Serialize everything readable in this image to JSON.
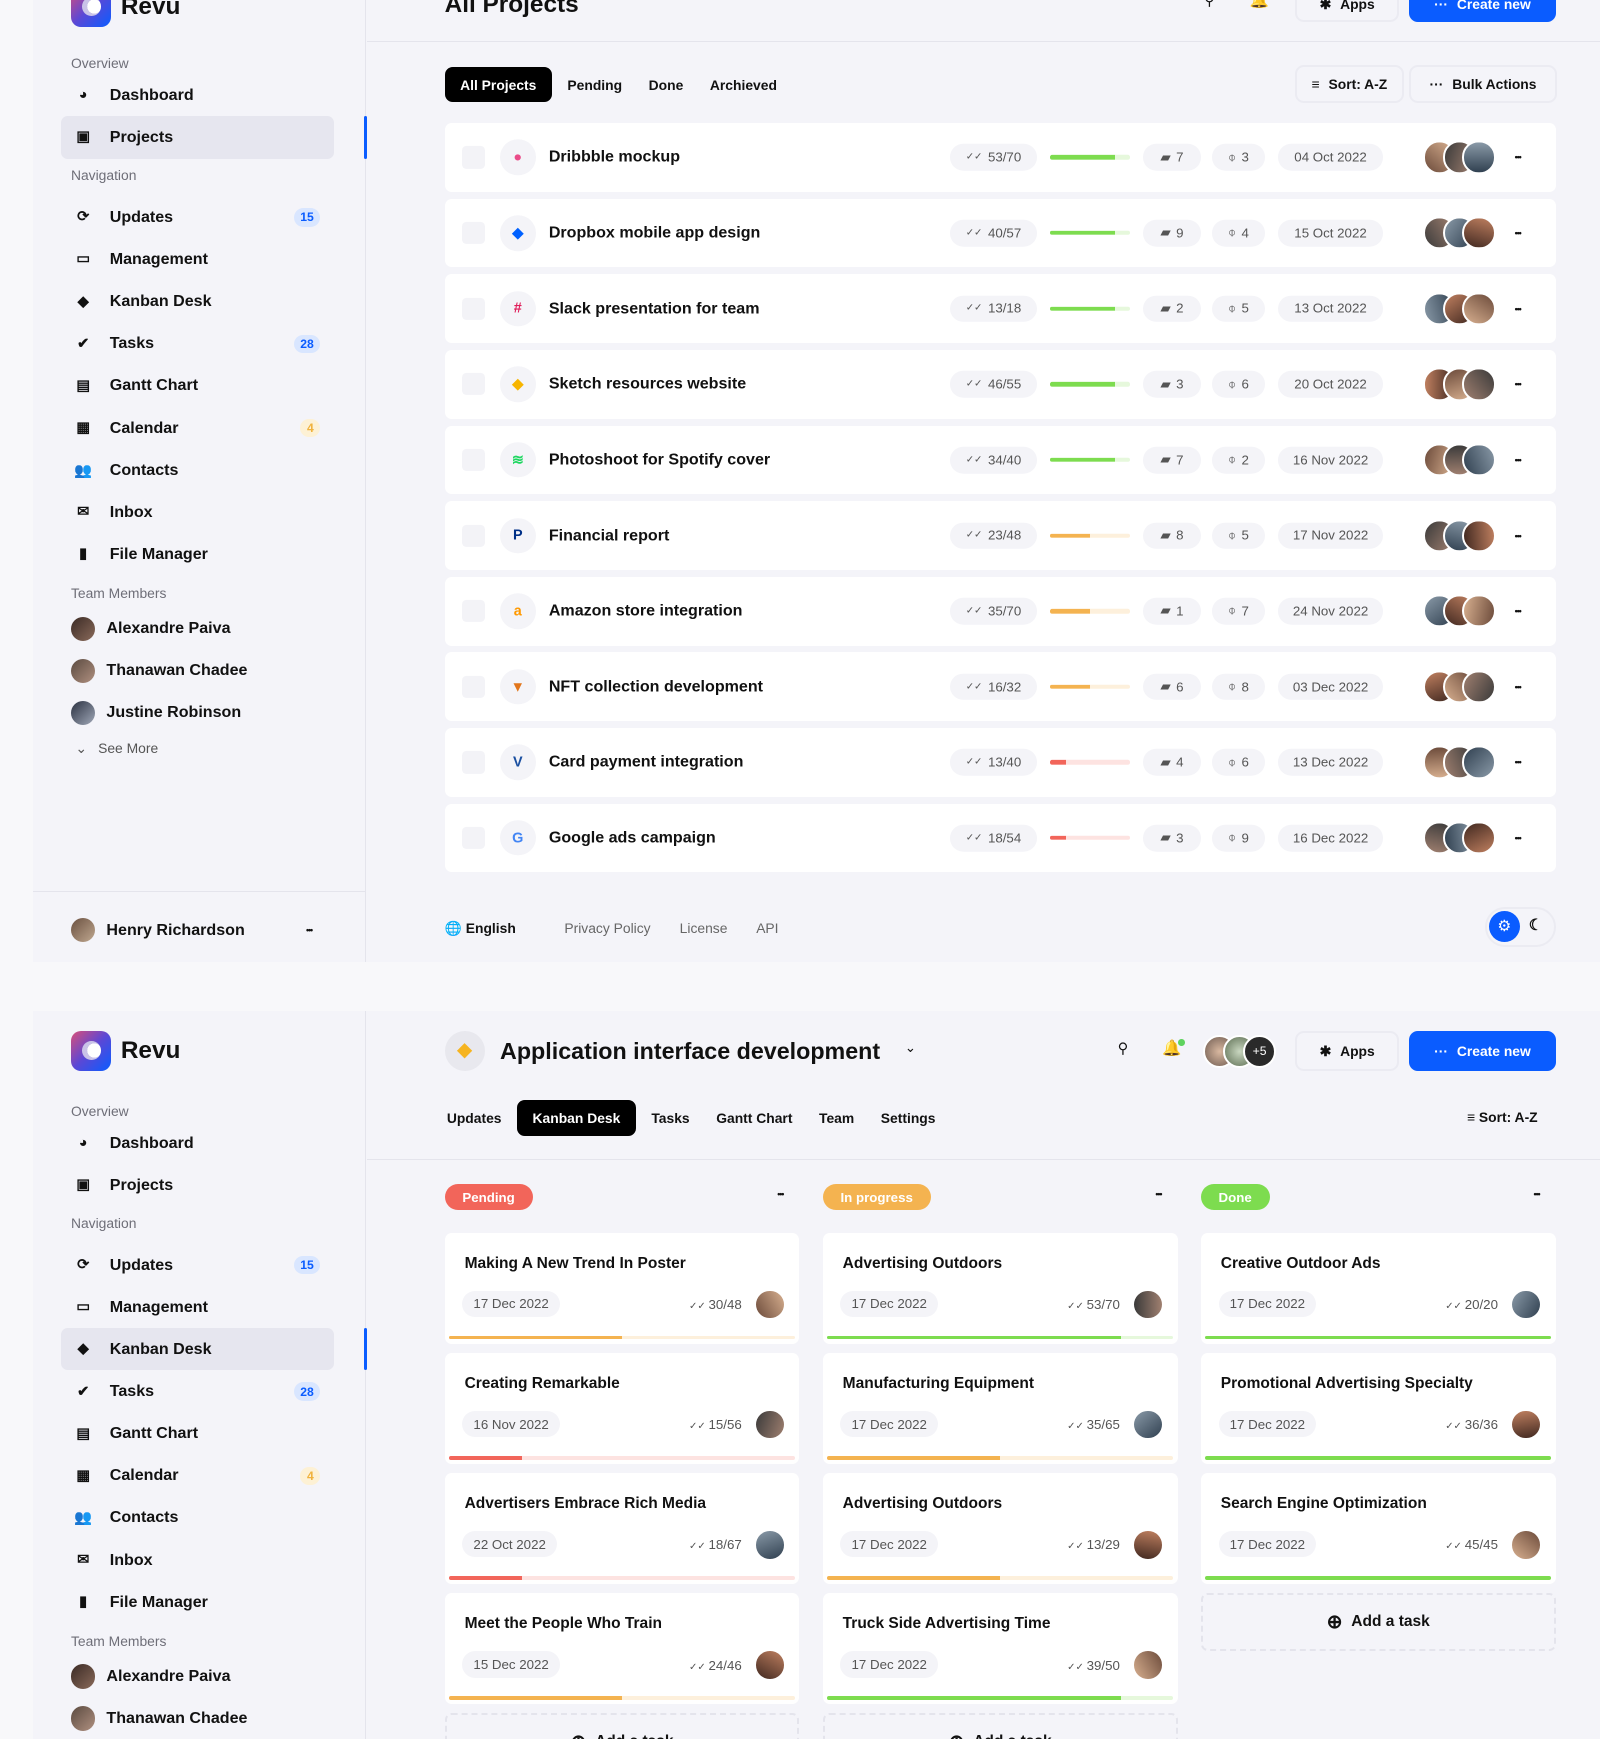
{
  "app": {
    "name": "Revu"
  },
  "sidebar": {
    "overview_label": "Overview",
    "navigation_label": "Navigation",
    "team_label": "Team Members",
    "overview": [
      {
        "label": "Dashboard",
        "icon": "pie-chart-icon"
      },
      {
        "label": "Projects",
        "icon": "projects-icon"
      }
    ],
    "navigation": [
      {
        "label": "Updates",
        "icon": "updates-icon",
        "badge": "15",
        "badge_color": "blue"
      },
      {
        "label": "Management",
        "icon": "monitor-icon"
      },
      {
        "label": "Kanban Desk",
        "icon": "layers-icon"
      },
      {
        "label": "Tasks",
        "icon": "double-check-icon",
        "badge": "28",
        "badge_color": "blue"
      },
      {
        "label": "Gantt Chart",
        "icon": "document-icon"
      },
      {
        "label": "Calendar",
        "icon": "calendar-icon",
        "badge": "4",
        "badge_color": "yellow"
      },
      {
        "label": "Contacts",
        "icon": "contacts-icon"
      },
      {
        "label": "Inbox",
        "icon": "mail-icon"
      },
      {
        "label": "File Manager",
        "icon": "file-icon"
      }
    ],
    "members": [
      "Alexandre Paiva",
      "Thanawan Chadee",
      "Justine Robinson"
    ],
    "see_more": "See More",
    "user": "Henry Richardson"
  },
  "projects_page": {
    "title": "All Projects",
    "apps_label": "Apps",
    "create_label": "Create new",
    "tabs": [
      "All Projects",
      "Pending",
      "Done",
      "Archieved"
    ],
    "sort_label": "Sort: A-Z",
    "bulk_label": "Bulk Actions",
    "rows": [
      {
        "name": "Dribbble mockup",
        "icon": "dribbble-icon",
        "tasks": "53/70",
        "progress": 0.82,
        "status": "green",
        "comments": "7",
        "attachments": "3",
        "date": "04 Oct 2022"
      },
      {
        "name": "Dropbox mobile app design",
        "icon": "dropbox-icon",
        "tasks": "40/57",
        "progress": 0.82,
        "status": "green",
        "comments": "9",
        "attachments": "4",
        "date": "15 Oct 2022"
      },
      {
        "name": "Slack presentation for team",
        "icon": "slack-icon",
        "tasks": "13/18",
        "progress": 0.82,
        "status": "green",
        "comments": "2",
        "attachments": "5",
        "date": "13 Oct 2022"
      },
      {
        "name": "Sketch resources website",
        "icon": "sketch-icon",
        "tasks": "46/55",
        "progress": 0.82,
        "status": "green",
        "comments": "3",
        "attachments": "6",
        "date": "20 Oct 2022"
      },
      {
        "name": "Photoshoot for Spotify cover",
        "icon": "spotify-icon",
        "tasks": "34/40",
        "progress": 0.82,
        "status": "green",
        "comments": "7",
        "attachments": "2",
        "date": "16 Nov 2022"
      },
      {
        "name": "Financial report",
        "icon": "paypal-icon",
        "tasks": "23/48",
        "progress": 0.5,
        "status": "orange",
        "comments": "8",
        "attachments": "5",
        "date": "17 Nov 2022"
      },
      {
        "name": "Amazon store integration",
        "icon": "amazon-icon",
        "tasks": "35/70",
        "progress": 0.5,
        "status": "orange",
        "comments": "1",
        "attachments": "7",
        "date": "24 Nov 2022"
      },
      {
        "name": "NFT collection development",
        "icon": "metamask-icon",
        "tasks": "16/32",
        "progress": 0.5,
        "status": "orange",
        "comments": "6",
        "attachments": "8",
        "date": "03 Dec 2022"
      },
      {
        "name": "Card payment integration",
        "icon": "visa-icon",
        "tasks": "13/40",
        "progress": 0.2,
        "status": "red",
        "comments": "4",
        "attachments": "6",
        "date": "13 Dec 2022"
      },
      {
        "name": "Google ads campaign",
        "icon": "google-icon",
        "tasks": "18/54",
        "progress": 0.2,
        "status": "red",
        "comments": "3",
        "attachments": "9",
        "date": "16 Dec 2022"
      }
    ],
    "footer": {
      "language": "English",
      "links": [
        "Privacy Policy",
        "License",
        "API"
      ]
    }
  },
  "kanban_page": {
    "title": "Application interface development",
    "extra_members": "+5",
    "apps_label": "Apps",
    "create_label": "Create new",
    "tabs": [
      "Updates",
      "Kanban Desk",
      "Tasks",
      "Gantt Chart",
      "Team",
      "Settings"
    ],
    "sort_label": "Sort: A-Z",
    "add_task": "Add a task",
    "columns": [
      {
        "label": "Pending",
        "color": "#f2655a",
        "cards": [
          {
            "title": "Making A New Trend In Poster",
            "date": "17 Dec 2022",
            "tasks": "30/48",
            "progress": 0.5,
            "status": "orange"
          },
          {
            "title": "Creating Remarkable",
            "date": "16 Nov 2022",
            "tasks": "15/56",
            "progress": 0.21,
            "status": "red"
          },
          {
            "title": "Advertisers Embrace Rich Media",
            "date": "22 Oct 2022",
            "tasks": "18/67",
            "progress": 0.21,
            "status": "red"
          },
          {
            "title": "Meet the People Who Train",
            "date": "15 Dec 2022",
            "tasks": "24/46",
            "progress": 0.5,
            "status": "orange"
          }
        ]
      },
      {
        "label": "In progress",
        "color": "#f4b350",
        "cards": [
          {
            "title": "Advertising Outdoors",
            "date": "17 Dec 2022",
            "tasks": "53/70",
            "progress": 0.85,
            "status": "green"
          },
          {
            "title": "Manufacturing Equipment",
            "date": "17 Dec 2022",
            "tasks": "35/65",
            "progress": 0.5,
            "status": "orange"
          },
          {
            "title": "Advertising Outdoors",
            "date": "17 Dec 2022",
            "tasks": "13/29",
            "progress": 0.5,
            "status": "orange"
          },
          {
            "title": "Truck Side Advertising Time",
            "date": "17 Dec 2022",
            "tasks": "39/50",
            "progress": 0.85,
            "status": "green"
          }
        ]
      },
      {
        "label": "Done",
        "color": "#7ddc4f",
        "cards": [
          {
            "title": "Creative Outdoor Ads",
            "date": "17 Dec 2022",
            "tasks": "20/20",
            "progress": 1,
            "status": "green"
          },
          {
            "title": "Promotional Advertising Specialty",
            "date": "17 Dec 2022",
            "tasks": "36/36",
            "progress": 1,
            "status": "green"
          },
          {
            "title": "Search Engine Optimization",
            "date": "17 Dec 2022",
            "tasks": "45/45",
            "progress": 1,
            "status": "green"
          }
        ]
      }
    ]
  },
  "colors": {
    "accent": "#0a5cff",
    "green": "#7ddc4f",
    "orange": "#f4b350",
    "red": "#f2655a"
  }
}
